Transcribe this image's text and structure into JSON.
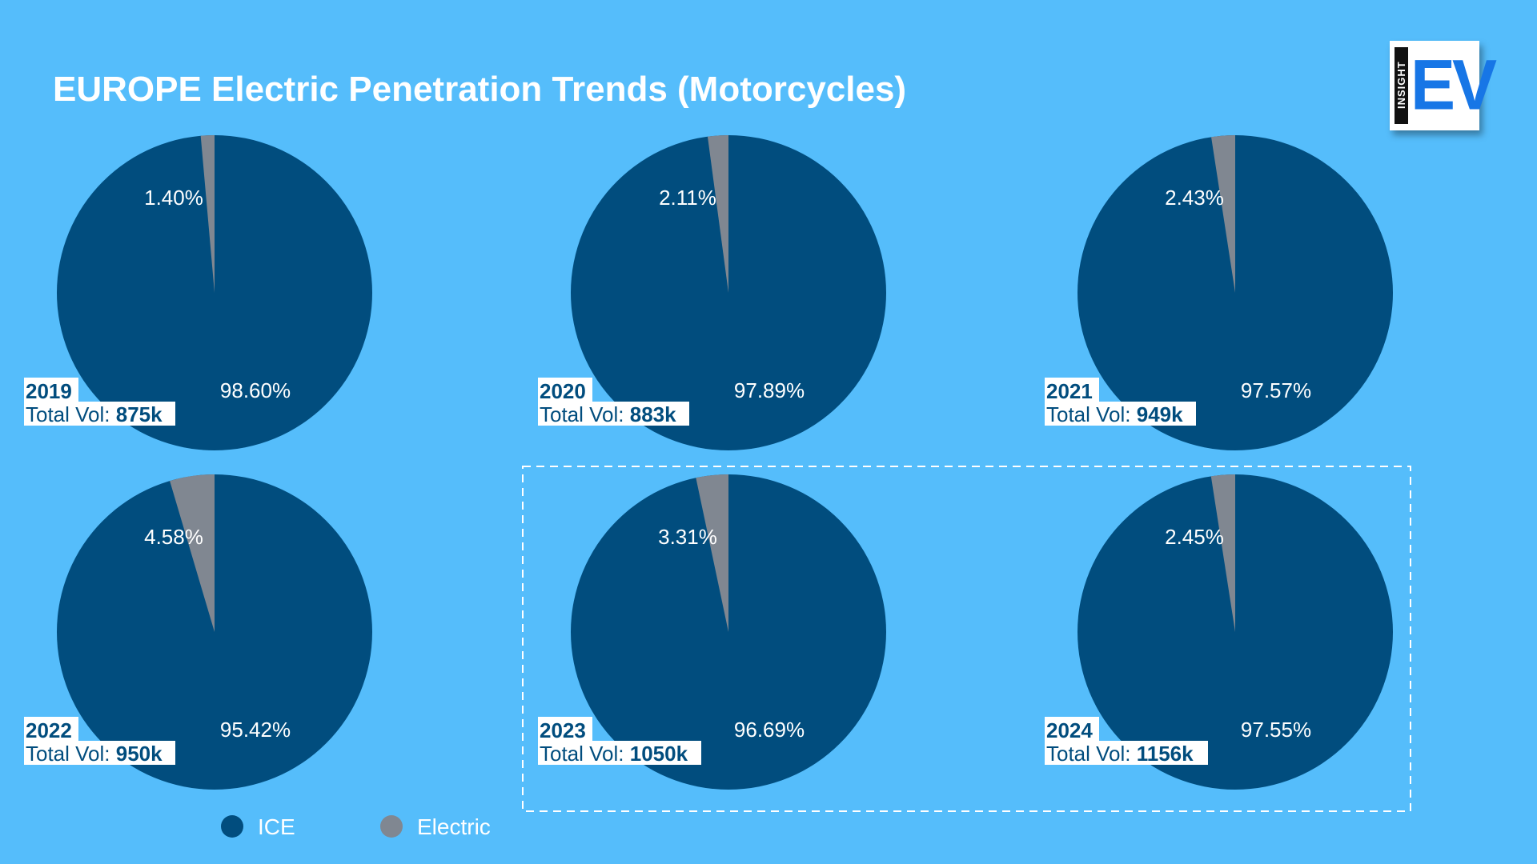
{
  "page": {
    "title": "EUROPE Electric Penetration Trends (Motorcycles)",
    "background_color": "#55bdfb"
  },
  "logo": {
    "small_text": "INSIGHT",
    "big_text": "EV"
  },
  "colors": {
    "ice": "#014d7e",
    "electric": "#808791",
    "label_text": "#ffffff",
    "info_text": "#014d7e",
    "info_background": "#ffffff",
    "highlight_border": "#ffffff"
  },
  "chart_data": {
    "type": "pie",
    "title": "EUROPE Electric Penetration Trends (Motorcycles)",
    "legend": {
      "position": "bottom-left",
      "entries": [
        {
          "name": "ICE",
          "color": "#014d7e"
        },
        {
          "name": "Electric",
          "color": "#808791"
        }
      ]
    },
    "total_vol_label": "Total Vol:",
    "charts": [
      {
        "year": "2019",
        "total_vol": "875k",
        "ice": 98.6,
        "electric": 1.4,
        "ice_label": "98.60%",
        "electric_label": "1.40%",
        "highlighted": false
      },
      {
        "year": "2020",
        "total_vol": "883k",
        "ice": 97.89,
        "electric": 2.11,
        "ice_label": "97.89%",
        "electric_label": "2.11%",
        "highlighted": false
      },
      {
        "year": "2021",
        "total_vol": "949k",
        "ice": 97.57,
        "electric": 2.43,
        "ice_label": "97.57%",
        "electric_label": "2.43%",
        "highlighted": false
      },
      {
        "year": "2022",
        "total_vol": "950k",
        "ice": 95.42,
        "electric": 4.58,
        "ice_label": "95.42%",
        "electric_label": "4.58%",
        "highlighted": false
      },
      {
        "year": "2023",
        "total_vol": "1050k",
        "ice": 96.69,
        "electric": 3.31,
        "ice_label": "96.69%",
        "electric_label": "3.31%",
        "highlighted": true
      },
      {
        "year": "2024",
        "total_vol": "1156k",
        "ice": 97.55,
        "electric": 2.45,
        "ice_label": "97.55%",
        "electric_label": "2.45%",
        "highlighted": true
      }
    ]
  }
}
